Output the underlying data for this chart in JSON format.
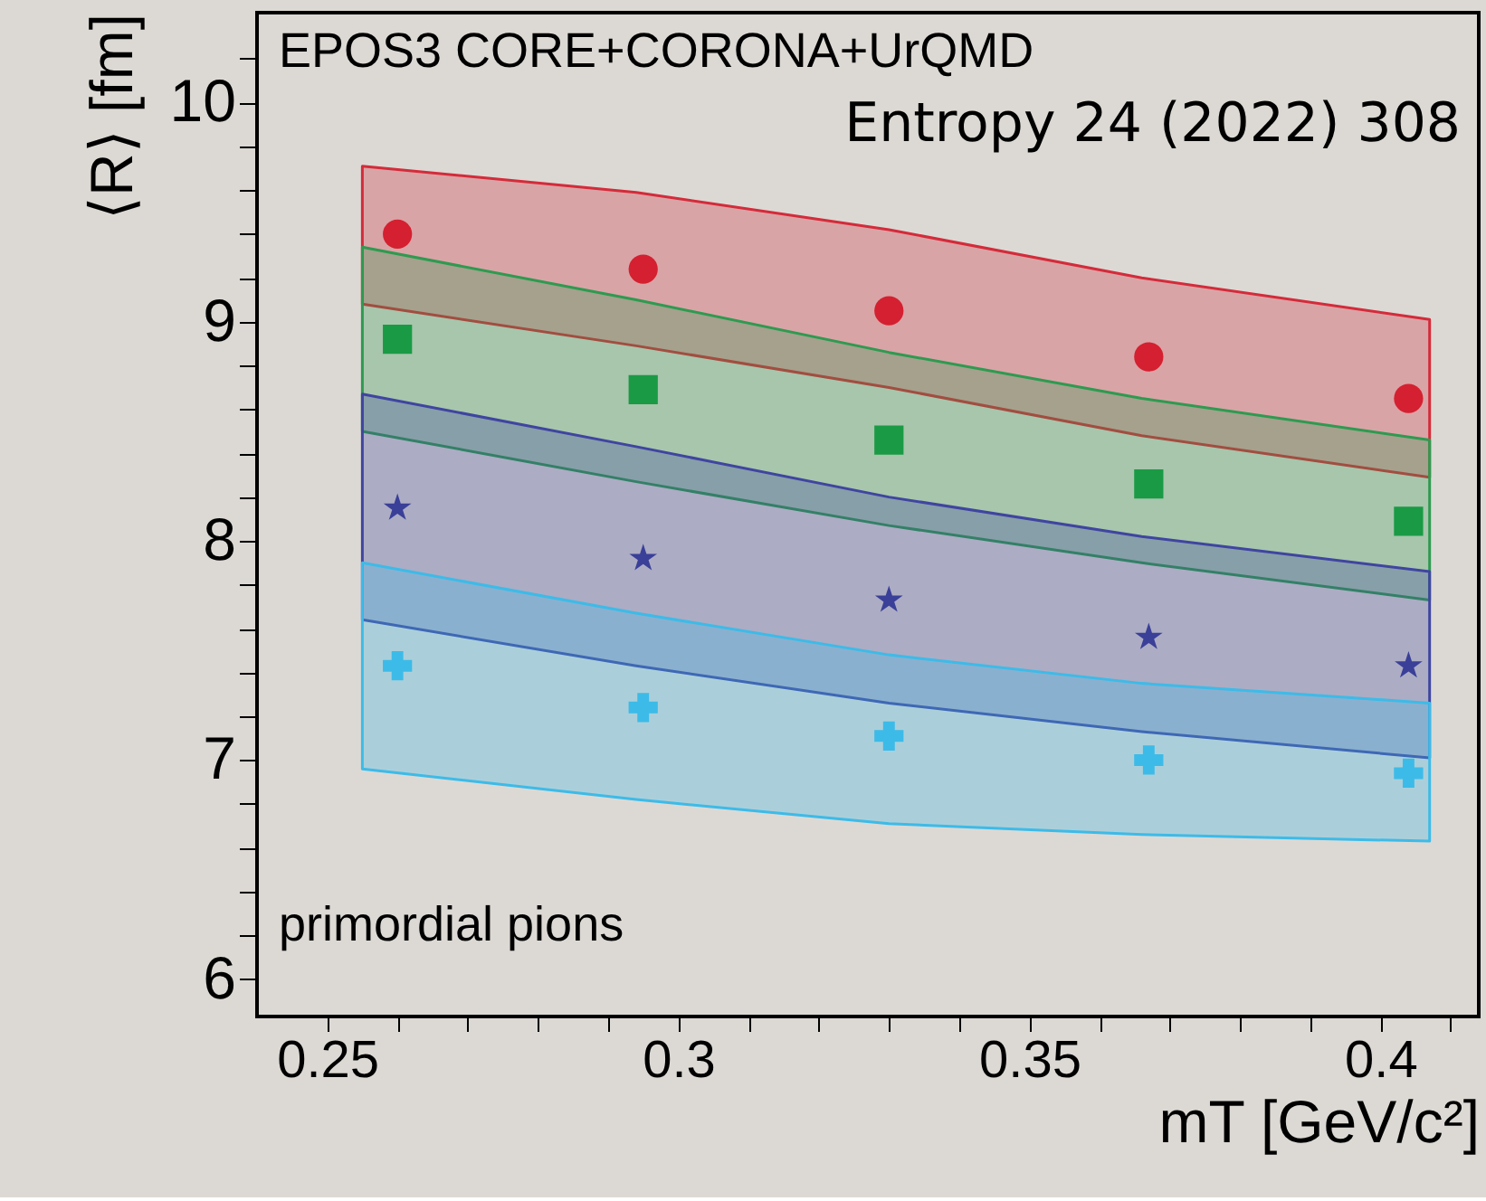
{
  "chart_data": {
    "type": "scatter",
    "xlabel": "mT [GeV/c²]",
    "ylabel": "⟨R⟩ [fm]",
    "annotations": [
      "EPOS3 CORE+CORONA+UrQMD",
      "Entropy 24 (2022) 308",
      "primordial pions"
    ],
    "xlim": [
      0.24,
      0.414
    ],
    "ylim": [
      5.83,
      10.41
    ],
    "xticks": [
      {
        "value": 0.25,
        "label": "0.25"
      },
      {
        "value": 0.26,
        "label": null
      },
      {
        "value": 0.27,
        "label": null
      },
      {
        "value": 0.28,
        "label": null
      },
      {
        "value": 0.29,
        "label": null
      },
      {
        "value": 0.3,
        "label": "0.3"
      },
      {
        "value": 0.31,
        "label": null
      },
      {
        "value": 0.32,
        "label": null
      },
      {
        "value": 0.33,
        "label": null
      },
      {
        "value": 0.34,
        "label": null
      },
      {
        "value": 0.35,
        "label": "0.35"
      },
      {
        "value": 0.36,
        "label": null
      },
      {
        "value": 0.37,
        "label": null
      },
      {
        "value": 0.38,
        "label": null
      },
      {
        "value": 0.39,
        "label": null
      },
      {
        "value": 0.4,
        "label": "0.4"
      },
      {
        "value": 0.41,
        "label": null
      }
    ],
    "yticks": [
      6,
      {
        "value": 6.2,
        "label": null
      },
      {
        "value": 6.4,
        "label": null
      },
      {
        "value": 6.6,
        "label": null
      },
      {
        "value": 6.8,
        "label": null
      },
      7,
      {
        "value": 7.2,
        "label": null
      },
      {
        "value": 7.4,
        "label": null
      },
      {
        "value": 7.6,
        "label": null
      },
      {
        "value": 7.8,
        "label": null
      },
      8,
      {
        "value": 8.2,
        "label": null
      },
      {
        "value": 8.4,
        "label": null
      },
      {
        "value": 8.6,
        "label": null
      },
      {
        "value": 8.8,
        "label": null
      },
      9,
      {
        "value": 9.2,
        "label": null
      },
      {
        "value": 9.4,
        "label": null
      },
      {
        "value": 9.6,
        "label": null
      },
      {
        "value": 9.8,
        "label": null
      },
      10,
      {
        "value": 10.2,
        "label": null
      }
    ],
    "grid": false,
    "series": [
      {
        "type": "area",
        "color": "#d42b3a",
        "x": [
          0.255,
          0.294,
          0.33,
          0.366,
          0.407
        ],
        "values": [
          null,
          null,
          null,
          null,
          null
        ],
        "upper": [
          9.71,
          9.59,
          9.42,
          9.2,
          9.01
        ],
        "lower": [
          9.08,
          8.89,
          8.7,
          8.48,
          8.29
        ]
      },
      {
        "type": "area",
        "color": "#2e9a50",
        "x": [
          0.255,
          0.294,
          0.33,
          0.366,
          0.407
        ],
        "values": [
          null,
          null,
          null,
          null,
          null
        ],
        "upper": [
          9.34,
          9.1,
          8.86,
          8.65,
          8.46
        ],
        "lower": [
          8.5,
          8.27,
          8.07,
          7.9,
          7.73
        ]
      },
      {
        "type": "area",
        "color": "#3f45a0",
        "x": [
          0.255,
          0.294,
          0.33,
          0.366,
          0.407
        ],
        "values": [
          null,
          null,
          null,
          null,
          null
        ],
        "upper": [
          8.67,
          8.43,
          8.2,
          8.02,
          7.86
        ],
        "lower": [
          7.64,
          7.43,
          7.26,
          7.13,
          7.01
        ]
      },
      {
        "type": "area",
        "color": "#3cbbe8",
        "x": [
          0.255,
          0.294,
          0.33,
          0.366,
          0.407
        ],
        "values": [
          null,
          null,
          null,
          null,
          null
        ],
        "upper": [
          7.9,
          7.67,
          7.48,
          7.35,
          7.26
        ],
        "lower": [
          6.96,
          6.82,
          6.71,
          6.66,
          6.63
        ]
      },
      {
        "marker": "circle",
        "color": "#d42030",
        "x": [
          0.26,
          0.295,
          0.33,
          0.367,
          0.404
        ],
        "values": [
          9.4,
          9.24,
          9.05,
          8.84,
          8.65
        ]
      },
      {
        "marker": "square",
        "color": "#1a9a45",
        "x": [
          0.26,
          0.295,
          0.33,
          0.367,
          0.404
        ],
        "values": [
          8.92,
          8.69,
          8.46,
          8.26,
          8.09
        ]
      },
      {
        "marker": "star",
        "color": "#3a3f98",
        "x": [
          0.26,
          0.295,
          0.33,
          0.367,
          0.404
        ],
        "values": [
          8.15,
          7.92,
          7.73,
          7.56,
          7.43
        ]
      },
      {
        "marker": "cross",
        "color": "#3cbbe8",
        "x": [
          0.26,
          0.295,
          0.33,
          0.367,
          0.404
        ],
        "values": [
          7.43,
          7.24,
          7.11,
          7.0,
          6.94
        ]
      }
    ]
  }
}
